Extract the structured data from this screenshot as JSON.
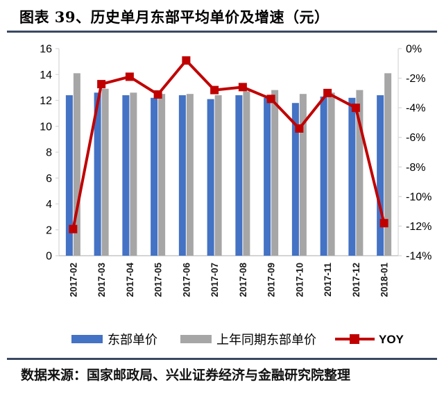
{
  "header": {
    "title": "图表 39、历史单月东部平均单价及增速（元）"
  },
  "footer": {
    "source": "数据来源：国家邮政局、兴业证券经济与金融研究院整理"
  },
  "colors": {
    "bar_east": "#4472C4",
    "bar_prev_year": "#A6A6A6",
    "line_yoy": "#C00000",
    "rule_navy": "#3A4861",
    "axis_line": "#D9D9D9",
    "bottom_axis_line": "#C6C6C6",
    "tick_label": "#1a1a1a"
  },
  "chart_data": {
    "type": "bar",
    "subtype": "bar+line-dual-axis",
    "title": "历史单月东部平均单价及增速（元）",
    "categories": [
      "2017-02",
      "2017-03",
      "2017-04",
      "2017-05",
      "2017-06",
      "2017-07",
      "2017-08",
      "2017-09",
      "2017-10",
      "2017-11",
      "2017-12",
      "2018-01"
    ],
    "series": [
      {
        "name": "东部单价",
        "type": "bar",
        "axis": "left",
        "color": "#4472C4",
        "values": [
          12.4,
          12.6,
          12.4,
          12.2,
          12.4,
          12.1,
          12.4,
          12.2,
          11.8,
          12.3,
          12.2,
          12.4
        ]
      },
      {
        "name": "上年同期东部单价",
        "type": "bar",
        "axis": "left",
        "color": "#A6A6A6",
        "values": [
          14.1,
          12.9,
          12.6,
          12.5,
          12.5,
          12.4,
          12.7,
          12.8,
          12.5,
          12.6,
          12.8,
          14.1
        ]
      },
      {
        "name": "YOY",
        "type": "line",
        "axis": "right",
        "color": "#C00000",
        "marker": "square",
        "values": [
          -12.2,
          -2.4,
          -1.9,
          -3.1,
          -0.8,
          -2.8,
          -2.6,
          -3.4,
          -5.4,
          -3.0,
          -4.0,
          -11.8
        ]
      }
    ],
    "left_axis": {
      "min": 0,
      "max": 16,
      "step": 2,
      "tick_labels": [
        "0",
        "2",
        "4",
        "6",
        "8",
        "10",
        "12",
        "14",
        "16"
      ]
    },
    "right_axis": {
      "min": -14,
      "max": 0,
      "step": 2,
      "suffix": "%",
      "tick_labels": [
        "0%",
        "-2%",
        "-4%",
        "-6%",
        "-8%",
        "-10%",
        "-12%",
        "-14%"
      ]
    },
    "legend_position": "bottom",
    "grid": false
  }
}
